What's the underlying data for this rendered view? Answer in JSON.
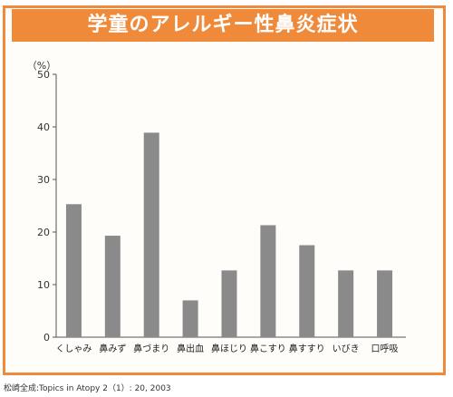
{
  "chart_data": {
    "type": "bar",
    "title": "学童のアレルギー性鼻炎症状",
    "ylabel": "（%）",
    "xlabel": "",
    "ylim": [
      0,
      50
    ],
    "yticks": [
      0,
      10,
      20,
      30,
      40,
      50
    ],
    "grid": false,
    "categories": [
      "くしゃみ",
      "鼻みず",
      "鼻づまり",
      "鼻出血",
      "鼻ほじり",
      "鼻こすり",
      "鼻すすり",
      "いびき",
      "口呼吸"
    ],
    "values": [
      25.3,
      19.3,
      38.9,
      7.0,
      12.7,
      21.3,
      17.5,
      12.7,
      12.7
    ],
    "bar_color": "#8a8a8a"
  },
  "source": "松崎全成:Topics in Atopy 2（1）: 20, 2003",
  "colors": {
    "accent": "#ee8a3a",
    "axis": "#555555"
  }
}
